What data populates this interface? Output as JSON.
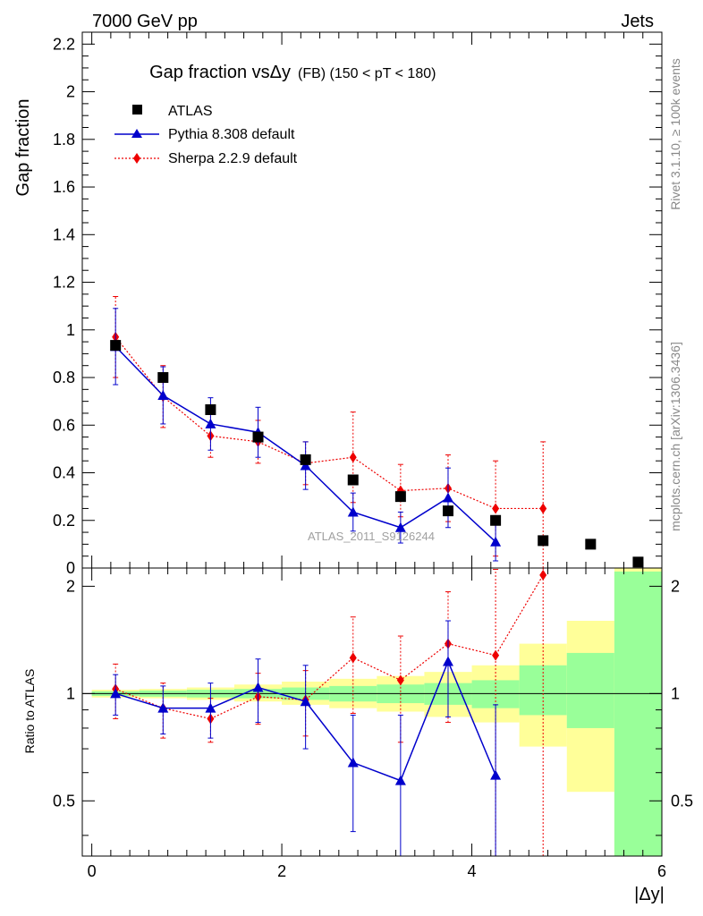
{
  "header": {
    "left": "7000 GeV pp",
    "right": "Jets"
  },
  "side_labels": {
    "rivet": "Rivet 3.1.10, ≥ 100k events",
    "mcplots": "mcplots.cern.ch [arXiv:1306.3436]"
  },
  "watermark": "ATLAS_2011_S9126244",
  "chart_data": {
    "type": "scatter",
    "title_main": "Gap fraction vsΔy",
    "title_sub": "(FB)  (150 < pT < 180)",
    "xlabel": "|Δy|",
    "ylabel": "Gap fraction",
    "ratio_ylabel": "Ratio to ATLAS",
    "xlim": [
      -0.1,
      6.0
    ],
    "ylim": [
      0,
      2.25
    ],
    "ratio_ylim": [
      0.35,
      2.25
    ],
    "x_ticks": [
      "0",
      "2",
      "4",
      "6"
    ],
    "y_ticks": [
      "0",
      "0.2",
      "0.4",
      "0.6",
      "0.8",
      "1",
      "1.2",
      "1.4",
      "1.6",
      "1.8",
      "2",
      "2.2"
    ],
    "ratio_ticks": [
      "0.5",
      "1",
      "2"
    ],
    "legend_position": "top-left",
    "band_edges": [
      0,
      0.5,
      1.0,
      1.5,
      2.0,
      2.5,
      3.0,
      3.5,
      4.0,
      4.5,
      5.0,
      5.5,
      6.0
    ],
    "band_green": [
      [
        0.985,
        1.015
      ],
      [
        0.98,
        1.02
      ],
      [
        0.975,
        1.025
      ],
      [
        0.97,
        1.03
      ],
      [
        0.96,
        1.04
      ],
      [
        0.95,
        1.05
      ],
      [
        0.94,
        1.06
      ],
      [
        0.93,
        1.07
      ],
      [
        0.91,
        1.09
      ],
      [
        0.87,
        1.2
      ],
      [
        0.8,
        1.3
      ],
      [
        0.35,
        2.2
      ]
    ],
    "band_yellow": [
      [
        0.975,
        1.025
      ],
      [
        0.97,
        1.03
      ],
      [
        0.96,
        1.04
      ],
      [
        0.95,
        1.06
      ],
      [
        0.93,
        1.08
      ],
      [
        0.91,
        1.1
      ],
      [
        0.89,
        1.12
      ],
      [
        0.86,
        1.15
      ],
      [
        0.83,
        1.2
      ],
      [
        0.71,
        1.38
      ],
      [
        0.53,
        1.6
      ],
      [
        0.35,
        2.25
      ]
    ],
    "series": [
      {
        "name": "ATLAS",
        "color": "#000000",
        "marker": "square",
        "x": [
          0.25,
          0.75,
          1.25,
          1.75,
          2.25,
          2.75,
          3.25,
          3.75,
          4.25,
          4.75,
          5.25,
          5.75
        ],
        "y": [
          0.935,
          0.8,
          0.665,
          0.55,
          0.455,
          0.37,
          0.3,
          0.24,
          0.2,
          0.115,
          0.1,
          0.025
        ]
      },
      {
        "name": "Pythia 8.308 default",
        "color": "#0000cc",
        "marker": "triangle",
        "line": "solid",
        "x": [
          0.25,
          0.75,
          1.25,
          1.75,
          2.25,
          2.75,
          3.25,
          3.75,
          4.25
        ],
        "y": [
          0.93,
          0.725,
          0.605,
          0.57,
          0.43,
          0.235,
          0.17,
          0.295,
          0.11
        ],
        "err": [
          0.16,
          0.12,
          0.11,
          0.105,
          0.1,
          0.08,
          0.065,
          0.125,
          0.08
        ],
        "ratio": [
          1.0,
          0.91,
          0.91,
          1.04,
          0.95,
          0.64,
          0.57,
          1.23,
          0.59
        ],
        "ratio_err": [
          0.13,
          0.14,
          0.16,
          0.21,
          0.25,
          0.23,
          0.3,
          0.37,
          0.34
        ]
      },
      {
        "name": "Sherpa 2.2.9 default",
        "color": "#ee0000",
        "marker": "diamond",
        "line": "dotted",
        "x": [
          0.25,
          0.75,
          1.25,
          1.75,
          2.25,
          2.75,
          3.25,
          3.75,
          4.25,
          4.75
        ],
        "y": [
          0.97,
          0.72,
          0.555,
          0.53,
          0.44,
          0.465,
          0.325,
          0.335,
          0.25,
          0.25
        ],
        "err": [
          0.17,
          0.13,
          0.09,
          0.09,
          0.09,
          0.19,
          0.11,
          0.14,
          0.2,
          0.28
        ],
        "ratio": [
          1.03,
          0.91,
          0.85,
          0.98,
          0.96,
          1.26,
          1.09,
          1.38,
          1.28,
          2.15
        ],
        "ratio_err": [
          0.18,
          0.16,
          0.12,
          0.16,
          0.2,
          0.38,
          0.36,
          0.55,
          0.95,
          1.9
        ]
      }
    ]
  }
}
